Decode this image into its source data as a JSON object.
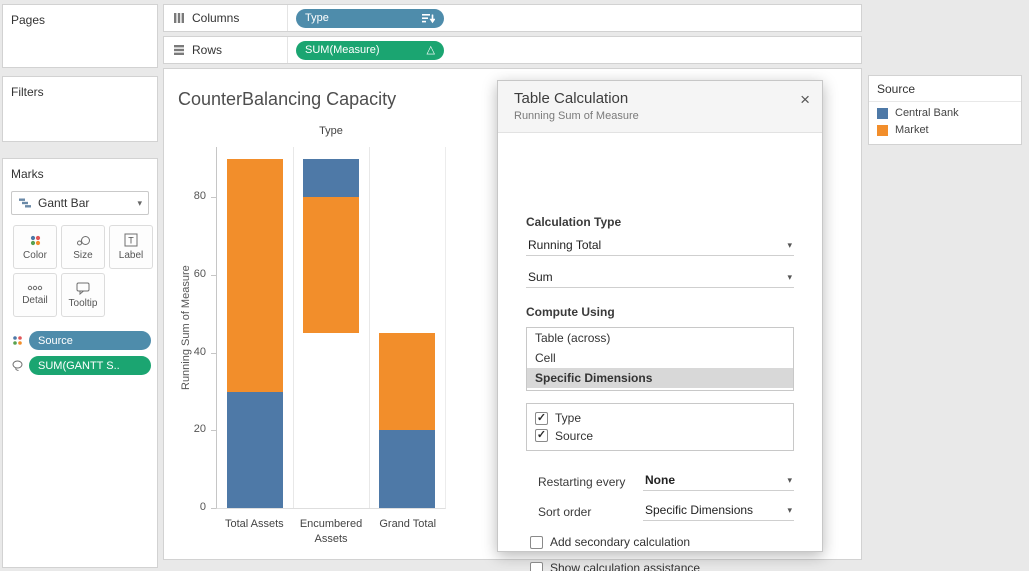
{
  "colors": {
    "dimension_pill": "#4e8cab",
    "measure_pill": "#1ba571",
    "bar_blue": "#4e79a7",
    "bar_orange": "#f28e2b",
    "selected_highlight": "#d8d8d8"
  },
  "left": {
    "pages_label": "Pages",
    "filters_label": "Filters",
    "marks": {
      "title": "Marks",
      "mark_type": "Gantt Bar",
      "buttons": [
        {
          "label": "Color"
        },
        {
          "label": "Size"
        },
        {
          "label": "Label"
        },
        {
          "label": "Detail"
        },
        {
          "label": "Tooltip"
        }
      ],
      "pills": [
        {
          "label": "Source",
          "type": "dimension"
        },
        {
          "label": "SUM(GANTT S..",
          "type": "measure"
        }
      ]
    }
  },
  "shelves": {
    "columns_label": "Columns",
    "rows_label": "Rows",
    "columns_pill": "Type",
    "rows_pill": "SUM(Measure)",
    "rows_pill_icon": "△"
  },
  "sheet": {
    "title": "CounterBalancing Capacity"
  },
  "chart_data": {
    "type": "bar",
    "subtype": "gantt-stacked",
    "title": "CounterBalancing Capacity",
    "column_field_header": "Type",
    "ylabel": "Running Sum of Measure",
    "yticks": [
      0,
      20,
      40,
      60,
      80
    ],
    "ylim": [
      0,
      93
    ],
    "categories": [
      "Total Assets",
      "Encumbered Assets",
      "Grand Total"
    ],
    "series": [
      {
        "name": "Central Bank",
        "color": "#4e79a7",
        "segments": [
          [
            0,
            30
          ],
          [
            80,
            90
          ],
          [
            0,
            20
          ]
        ]
      },
      {
        "name": "Market",
        "color": "#f28e2b",
        "segments": [
          [
            30,
            90
          ],
          [
            45,
            80
          ],
          [
            20,
            45
          ]
        ]
      }
    ],
    "legend_position": "right",
    "grid": "category-dividers"
  },
  "dialog": {
    "title": "Table Calculation",
    "subtitle": "Running Sum of Measure",
    "close": "×",
    "calc_type_label": "Calculation Type",
    "calc_type_value": "Running Total",
    "aggregation_value": "Sum",
    "compute_using_label": "Compute Using",
    "compute_options": [
      "Table (across)",
      "Cell",
      "Specific Dimensions"
    ],
    "selected_option": "Specific Dimensions",
    "dimension_checks": [
      {
        "label": "Type",
        "checked": true
      },
      {
        "label": "Source",
        "checked": true
      }
    ],
    "restarting_label": "Restarting every",
    "restarting_value": "None",
    "sort_label": "Sort order",
    "sort_value": "Specific Dimensions",
    "secondary_label": "Add secondary calculation",
    "secondary_checked": false,
    "assistance_label": "Show calculation assistance",
    "assistance_checked": false
  },
  "legend": {
    "title": "Source",
    "items": [
      {
        "label": "Central Bank",
        "color": "#4e79a7"
      },
      {
        "label": "Market",
        "color": "#f28e2b"
      }
    ]
  }
}
